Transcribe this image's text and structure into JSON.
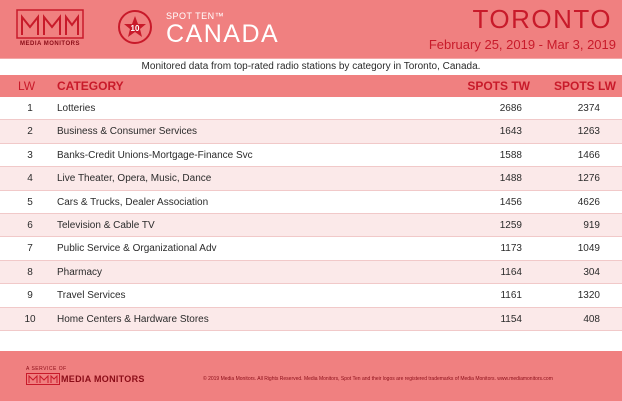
{
  "header": {
    "logo_text": "MEDIA MONITORS",
    "badge_number": "10",
    "spot_ten": "SPOT TEN™",
    "country": "CANADA",
    "city": "TORONTO",
    "date_range": "February 25, 2019 - Mar 3, 2019"
  },
  "subtitle": "Monitored data from top-rated radio stations by category in Toronto, Canada.",
  "table": {
    "headers": {
      "lw": "LW",
      "category": "CATEGORY",
      "spots_tw": "SPOTS TW",
      "spots_lw": "SPOTS LW"
    },
    "rows": [
      {
        "lw": "1",
        "category": "Lotteries",
        "tw": "2686",
        "slw": "2374"
      },
      {
        "lw": "2",
        "category": "Business & Consumer Services",
        "tw": "1643",
        "slw": "1263"
      },
      {
        "lw": "3",
        "category": "Banks-Credit Unions-Mortgage-Finance Svc",
        "tw": "1588",
        "slw": "1466"
      },
      {
        "lw": "4",
        "category": "Live Theater, Opera, Music, Dance",
        "tw": "1488",
        "slw": "1276"
      },
      {
        "lw": "5",
        "category": "Cars & Trucks, Dealer Association",
        "tw": "1456",
        "slw": "4626"
      },
      {
        "lw": "6",
        "category": "Television & Cable TV",
        "tw": "1259",
        "slw": "919"
      },
      {
        "lw": "7",
        "category": "Public Service & Organizational Adv",
        "tw": "1173",
        "slw": "1049"
      },
      {
        "lw": "8",
        "category": "Pharmacy",
        "tw": "1164",
        "slw": "304"
      },
      {
        "lw": "9",
        "category": "Travel Services",
        "tw": "1161",
        "slw": "1320"
      },
      {
        "lw": "10",
        "category": "Home Centers & Hardware Stores",
        "tw": "1154",
        "slw": "408"
      }
    ]
  },
  "footer": {
    "service_of": "A SERVICE OF",
    "brand": "MEDIA MONITORS",
    "copyright": "© 2019 Media Monitors. All Rights Reserved. Media Monitors, Spot Ten and their logos are registered trademarks of Media Monitors. www.mediamonitors.com"
  },
  "colors": {
    "band": "#f08080",
    "accent": "#c81a2a",
    "dark": "#8a0c17",
    "row_alt": "#fbe9e9"
  }
}
